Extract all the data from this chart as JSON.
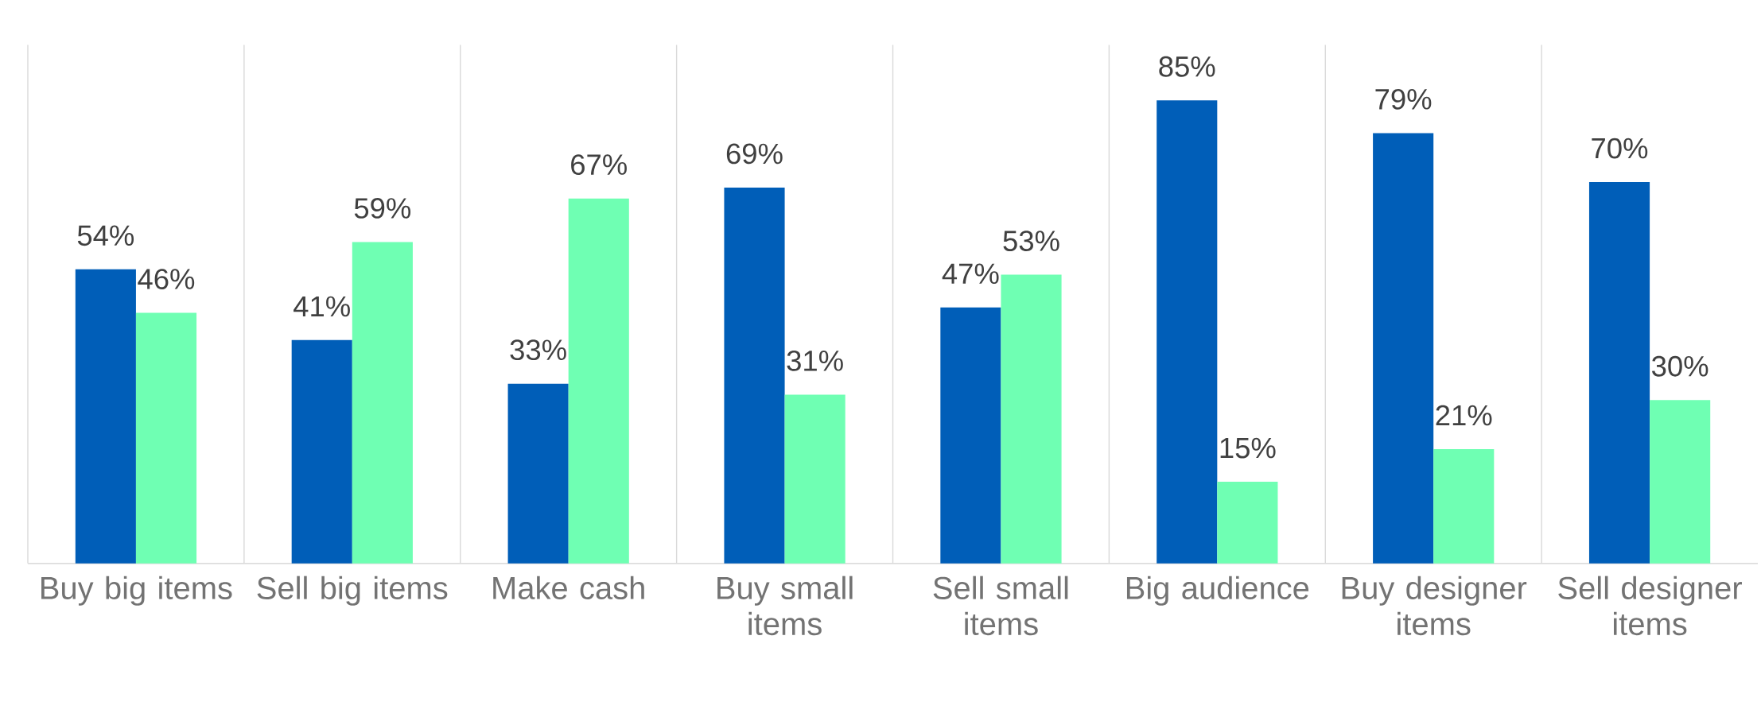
{
  "chart_data": {
    "type": "bar",
    "grid": "x",
    "categories": [
      "Buy big items",
      "Sell big items",
      "Make cash",
      "Buy small items",
      "Sell small items",
      "Big audience",
      "Buy designer items",
      "Sell designer items"
    ],
    "series": [
      {
        "color": "#005eb8",
        "values": [
          54,
          41,
          33,
          69,
          47,
          85,
          79,
          70
        ],
        "value_labels": [
          "54%",
          "41%",
          "33%",
          "69%",
          "47%",
          "85%",
          "79%",
          "70%"
        ]
      },
      {
        "color": "#6fffb3",
        "values": [
          46,
          59,
          67,
          31,
          53,
          15,
          21,
          30
        ],
        "value_labels": [
          "46%",
          "59%",
          "67%",
          "31%",
          "53%",
          "15%",
          "21%",
          "30%"
        ]
      }
    ]
  }
}
